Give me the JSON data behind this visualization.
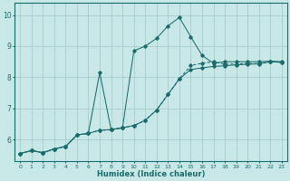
{
  "title": "",
  "xlabel": "Humidex (Indice chaleur)",
  "ylabel": "",
  "bg_color": "#c8e8e8",
  "grid_color": "#a8cccc",
  "line_color": "#1a6b6b",
  "xlim": [
    -0.5,
    23.5
  ],
  "ylim": [
    5.3,
    10.4
  ],
  "xticks": [
    0,
    1,
    2,
    3,
    4,
    5,
    6,
    7,
    8,
    9,
    10,
    11,
    12,
    13,
    14,
    15,
    16,
    17,
    18,
    19,
    20,
    21,
    22,
    23
  ],
  "yticks": [
    6,
    7,
    8,
    9,
    10
  ],
  "line1_x": [
    0,
    1,
    2,
    3,
    4,
    5,
    6,
    7,
    8,
    9,
    10,
    11,
    12,
    13,
    14,
    15,
    16,
    17,
    18,
    19,
    20,
    21,
    22,
    23
  ],
  "line1_y": [
    5.55,
    5.65,
    5.58,
    5.7,
    5.78,
    6.15,
    6.2,
    6.3,
    6.32,
    6.38,
    6.45,
    6.62,
    6.95,
    7.45,
    7.95,
    8.38,
    8.45,
    8.5,
    8.42,
    8.43,
    8.44,
    8.44,
    8.5,
    8.48
  ],
  "line2_x": [
    0,
    1,
    2,
    3,
    4,
    5,
    6,
    7,
    8,
    9,
    10,
    11,
    12,
    13,
    14,
    15,
    16,
    17,
    18,
    19,
    20,
    21,
    22,
    23
  ],
  "line2_y": [
    5.55,
    5.65,
    5.58,
    5.7,
    5.78,
    6.15,
    6.2,
    8.15,
    6.32,
    6.38,
    8.85,
    9.0,
    9.25,
    9.65,
    9.92,
    9.3,
    8.7,
    8.45,
    8.5,
    8.5,
    8.5,
    8.5,
    8.52,
    8.5
  ],
  "line3_x": [
    0,
    1,
    2,
    3,
    4,
    5,
    6,
    7,
    8,
    9,
    10,
    11,
    12,
    13,
    14,
    15,
    16,
    17,
    18,
    19,
    20,
    21,
    22,
    23
  ],
  "line3_y": [
    5.55,
    5.65,
    5.58,
    5.7,
    5.78,
    6.15,
    6.2,
    6.3,
    6.32,
    6.38,
    6.45,
    6.62,
    6.95,
    7.45,
    7.95,
    8.25,
    8.3,
    8.35,
    8.37,
    8.4,
    8.42,
    8.43,
    8.5,
    8.48
  ],
  "figsize": [
    3.2,
    2.0
  ],
  "dpi": 100
}
